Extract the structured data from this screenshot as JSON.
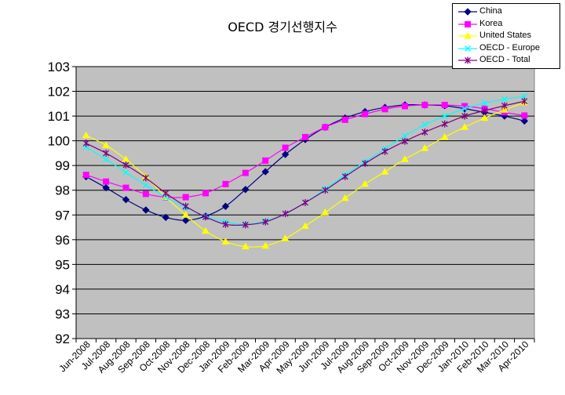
{
  "chart_data": {
    "type": "line",
    "title": "OECD 경기선행지수",
    "xlabel": "",
    "ylabel": "",
    "ylim": [
      92,
      103
    ],
    "yticks": [
      92,
      93,
      94,
      95,
      96,
      97,
      98,
      99,
      100,
      101,
      102,
      103
    ],
    "grid": true,
    "legend": "top-right",
    "categories": [
      "Jun-2008",
      "Jul-2008",
      "Aug-2008",
      "Sep-2008",
      "Oct-2008",
      "Nov-2008",
      "Dec-2008",
      "Jan-2009",
      "Feb-2009",
      "Mar-2009",
      "Apr-2009",
      "May-2009",
      "Jun-2009",
      "Jul-2009",
      "Aug-2009",
      "Sep-2009",
      "Oct-2009",
      "Nov-2009",
      "Dec-2009",
      "Jan-2010",
      "Feb-2010",
      "Mar-2010",
      "Apr-2010"
    ],
    "series": [
      {
        "name": "China",
        "color": "#000080",
        "marker": "diamond",
        "values": [
          98.55,
          98.1,
          97.62,
          97.2,
          96.9,
          96.78,
          96.95,
          97.35,
          98.03,
          98.75,
          99.45,
          100.05,
          100.55,
          100.92,
          101.18,
          101.35,
          101.45,
          101.45,
          101.42,
          101.3,
          101.15,
          101.0,
          100.8
        ]
      },
      {
        "name": "Korea",
        "color": "#FF00FF",
        "marker": "square",
        "values": [
          98.62,
          98.35,
          98.1,
          97.85,
          97.72,
          97.72,
          97.88,
          98.25,
          98.7,
          99.2,
          99.72,
          100.15,
          100.55,
          100.85,
          101.08,
          101.28,
          101.4,
          101.45,
          101.45,
          101.4,
          101.3,
          101.15,
          101.02
        ]
      },
      {
        "name": "United States",
        "color": "#FFFF00",
        "marker": "triangle",
        "values": [
          100.22,
          99.82,
          99.25,
          98.55,
          97.72,
          97.0,
          96.35,
          95.92,
          95.72,
          95.75,
          96.05,
          96.55,
          97.1,
          97.68,
          98.25,
          98.75,
          99.25,
          99.7,
          100.15,
          100.55,
          100.92,
          101.25,
          101.55
        ]
      },
      {
        "name": "OECD - Europe",
        "color": "#00FFFF",
        "marker": "x",
        "values": [
          99.75,
          99.25,
          98.72,
          98.2,
          97.72,
          97.3,
          96.95,
          96.72,
          96.62,
          96.75,
          97.05,
          97.5,
          98.05,
          98.62,
          99.15,
          99.68,
          100.2,
          100.65,
          101.0,
          101.3,
          101.52,
          101.68,
          101.8
        ]
      },
      {
        "name": "OECD - Total",
        "color": "#800080",
        "marker": "star",
        "values": [
          99.9,
          99.5,
          99.02,
          98.5,
          97.88,
          97.35,
          96.92,
          96.62,
          96.6,
          96.72,
          97.05,
          97.5,
          98.0,
          98.55,
          99.08,
          99.57,
          99.98,
          100.35,
          100.68,
          101.0,
          101.22,
          101.42,
          101.6
        ]
      }
    ]
  }
}
